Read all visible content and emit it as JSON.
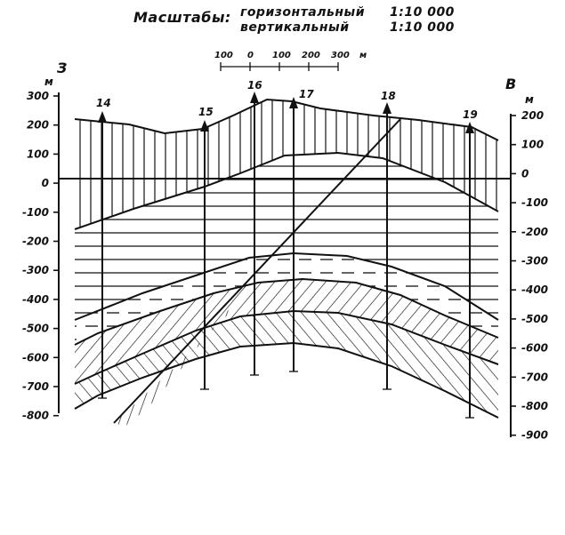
{
  "header": {
    "title": "Масштабы:",
    "scales": [
      {
        "label": "горизонтальный",
        "value": "1:10 000"
      },
      {
        "label": "вертикальный",
        "value": "1:10 000"
      }
    ]
  },
  "scale_bar": {
    "ticks": [
      "100",
      "0",
      "100",
      "200",
      "300"
    ],
    "unit": "м"
  },
  "compass": {
    "west": "З",
    "east": "В"
  },
  "left_axis": {
    "unit": "м",
    "ticks": [
      "300",
      "200",
      "100",
      "0",
      "-100",
      "-200",
      "-300",
      "-400",
      "-500",
      "-600",
      "-700",
      "-800"
    ]
  },
  "right_axis": {
    "unit": "м",
    "ticks": [
      "200",
      "100",
      "0",
      "-100",
      "-200",
      "-300",
      "-400",
      "-500",
      "-600",
      "-700",
      "-800",
      "-900"
    ]
  },
  "boreholes": [
    "14",
    "15",
    "16",
    "17",
    "18",
    "19"
  ]
}
